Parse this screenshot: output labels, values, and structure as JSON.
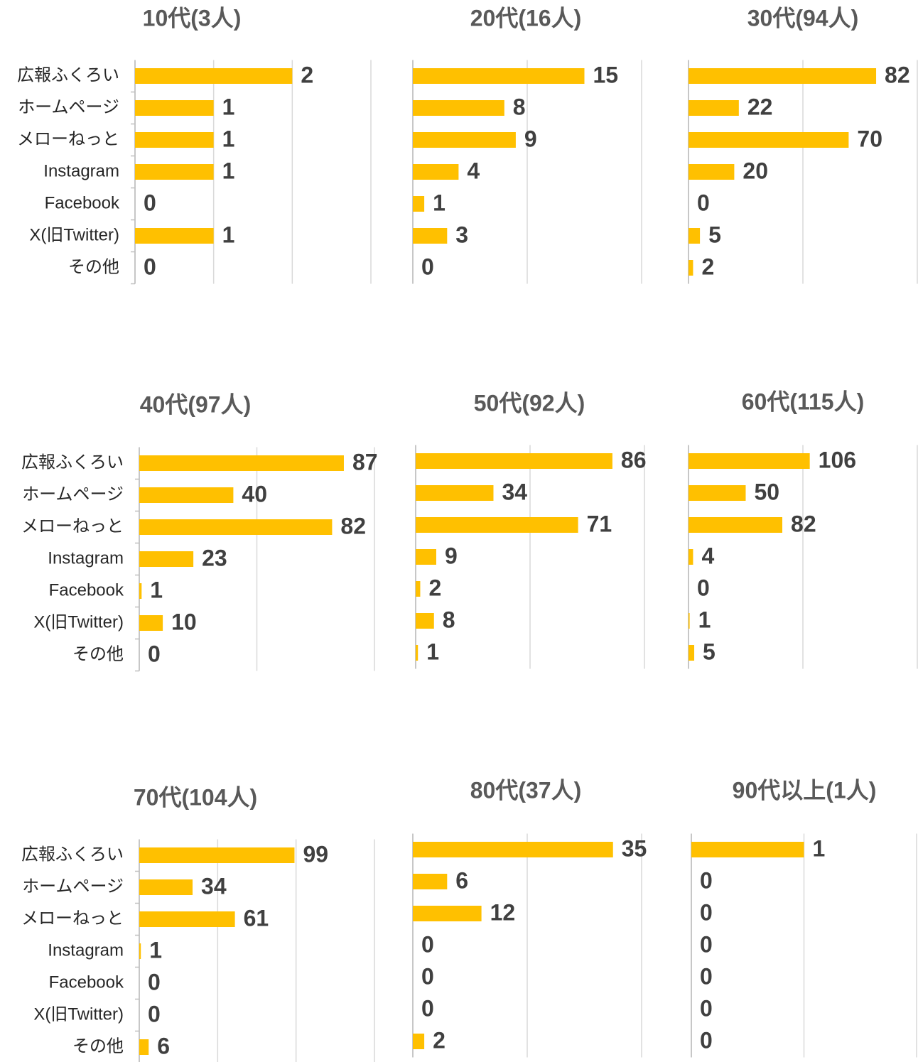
{
  "chart_data": [
    {
      "type": "bar",
      "orientation": "horizontal",
      "title": "10代(3人)",
      "categories": [
        "広報ふくろい",
        "ホームページ",
        "メローねっと",
        "Instagram",
        "Facebook",
        "X(旧Twitter)",
        "その他"
      ],
      "values": [
        2,
        1,
        1,
        1,
        0,
        1,
        0
      ],
      "color": "#ffc000",
      "xlim": [
        0,
        3
      ],
      "xticks": [
        0,
        1,
        2,
        3
      ],
      "grid": true
    },
    {
      "type": "bar",
      "orientation": "horizontal",
      "title": "20代(16人)",
      "values": [
        15,
        8,
        9,
        4,
        1,
        3,
        0
      ],
      "color": "#ffc000",
      "xlim": [
        0,
        20
      ],
      "xticks": [
        0,
        10,
        20
      ],
      "grid": true
    },
    {
      "type": "bar",
      "orientation": "horizontal",
      "title": "30代(94人)",
      "values": [
        82,
        22,
        70,
        20,
        0,
        5,
        2
      ],
      "color": "#ffc000",
      "xlim": [
        0,
        100
      ],
      "xticks": [
        0,
        50,
        100
      ],
      "grid": true
    },
    {
      "type": "bar",
      "orientation": "horizontal",
      "title": "40代(97人)",
      "categories": [
        "広報ふくろい",
        "ホームページ",
        "メローねっと",
        "Instagram",
        "Facebook",
        "X(旧Twitter)",
        "その他"
      ],
      "values": [
        87,
        40,
        82,
        23,
        1,
        10,
        0
      ],
      "color": "#ffc000",
      "xlim": [
        0,
        100
      ],
      "xticks": [
        0,
        50,
        100
      ],
      "grid": true
    },
    {
      "type": "bar",
      "orientation": "horizontal",
      "title": "50代(92人)",
      "values": [
        86,
        34,
        71,
        9,
        2,
        8,
        1
      ],
      "color": "#ffc000",
      "xlim": [
        0,
        100
      ],
      "xticks": [
        0,
        50,
        100
      ],
      "grid": true
    },
    {
      "type": "bar",
      "orientation": "horizontal",
      "title": "60代(115人)",
      "values": [
        106,
        50,
        82,
        4,
        0,
        1,
        5
      ],
      "color": "#ffc000",
      "xlim": [
        0,
        200
      ],
      "xticks": [
        0,
        100,
        200
      ],
      "grid": true
    },
    {
      "type": "bar",
      "orientation": "horizontal",
      "title": "70代(104人)",
      "categories": [
        "広報ふくろい",
        "ホームページ",
        "メローねっと",
        "Instagram",
        "Facebook",
        "X(旧Twitter)",
        "その他"
      ],
      "values": [
        99,
        34,
        61,
        1,
        0,
        0,
        6
      ],
      "color": "#ffc000",
      "xlim": [
        0,
        150
      ],
      "xticks": [
        0,
        50,
        100,
        150
      ],
      "grid": true
    },
    {
      "type": "bar",
      "orientation": "horizontal",
      "title": "80代(37人)",
      "values": [
        35,
        6,
        12,
        0,
        0,
        0,
        2
      ],
      "color": "#ffc000",
      "xlim": [
        0,
        40
      ],
      "xticks": [
        0,
        20,
        40
      ],
      "grid": true
    },
    {
      "type": "bar",
      "orientation": "horizontal",
      "title": "90代以上(1人)",
      "values": [
        1,
        0,
        0,
        0,
        0,
        0,
        0
      ],
      "color": "#ffc000",
      "xlim": [
        0,
        2
      ],
      "xticks": [
        0,
        1,
        2
      ],
      "grid": true
    }
  ]
}
